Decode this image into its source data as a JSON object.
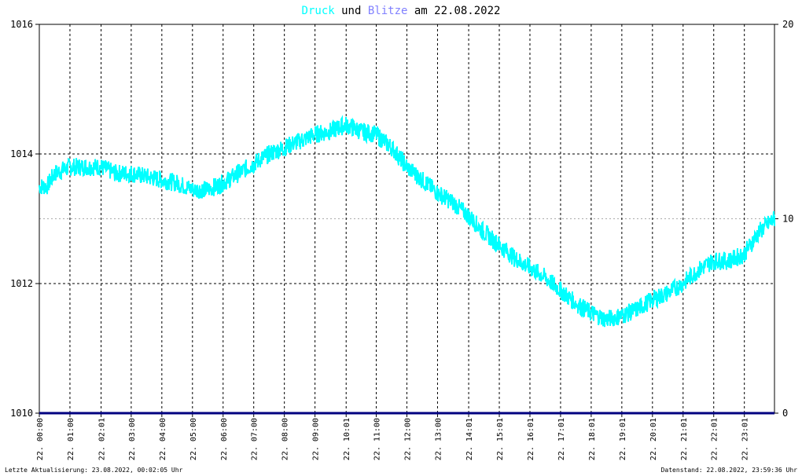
{
  "title": {
    "part1": "Druck",
    "part2": " und ",
    "part3": "Blitze",
    "part4": " am 22.08.2022",
    "color1": "#00ffff",
    "color3": "#8080ff",
    "color_text": "#000000"
  },
  "footer": {
    "left": "Letzte Aktualisierung: 23.08.2022, 00:02:05 Uhr",
    "right": "Datenstand: 22.08.2022, 23:59:36 Uhr"
  },
  "chart_data": {
    "type": "line",
    "grid": true,
    "left_axis": {
      "ylim": [
        1010,
        1016
      ],
      "ticks": [
        "1010",
        "1012",
        "1014",
        "1016"
      ]
    },
    "right_axis": {
      "ylim": [
        0,
        20
      ],
      "ticks": [
        "0",
        "10",
        "20"
      ]
    },
    "x_ticks": [
      "22. 00:00",
      "22. 01:00",
      "22. 02:01",
      "22. 03:00",
      "22. 04:00",
      "22. 05:00",
      "22. 06:00",
      "22. 07:00",
      "22. 08:00",
      "22. 09:00",
      "22. 10:01",
      "22. 11:00",
      "22. 12:00",
      "22. 13:00",
      "22. 14:01",
      "22. 15:01",
      "22. 16:01",
      "22. 17:01",
      "22. 18:01",
      "22. 19:01",
      "22. 20:01",
      "22. 21:01",
      "22. 22:01",
      "22. 23:01"
    ],
    "series": [
      {
        "name": "Druck",
        "axis": "left",
        "color": "#00ffff",
        "x_hours": [
          0,
          0.25,
          0.5,
          1,
          1.5,
          2,
          2.5,
          3,
          3.5,
          4,
          4.5,
          5,
          5.5,
          6,
          6.5,
          7,
          7.5,
          8,
          8.5,
          9,
          9.5,
          10,
          10.5,
          11,
          11.5,
          12,
          12.5,
          13,
          13.5,
          14,
          14.5,
          15,
          15.5,
          16,
          16.5,
          17,
          17.5,
          18,
          18.5,
          19,
          19.5,
          20,
          20.5,
          21,
          21.5,
          22,
          22.5,
          23,
          23.5,
          24
        ],
        "values": [
          1013.5,
          1013.5,
          1013.7,
          1013.8,
          1013.8,
          1013.8,
          1013.7,
          1013.7,
          1013.65,
          1013.6,
          1013.55,
          1013.45,
          1013.45,
          1013.55,
          1013.7,
          1013.85,
          1014.0,
          1014.1,
          1014.2,
          1014.3,
          1014.35,
          1014.45,
          1014.35,
          1014.3,
          1014.1,
          1013.8,
          1013.6,
          1013.4,
          1013.25,
          1013.05,
          1012.8,
          1012.6,
          1012.4,
          1012.25,
          1012.1,
          1011.9,
          1011.7,
          1011.55,
          1011.45,
          1011.5,
          1011.6,
          1011.75,
          1011.85,
          1012.0,
          1012.2,
          1012.35,
          1012.35,
          1012.45,
          1012.8,
          1013.0
        ]
      },
      {
        "name": "Blitze",
        "axis": "right",
        "color": "#000080",
        "x_hours": [
          0,
          24
        ],
        "values": [
          0,
          0
        ]
      }
    ]
  }
}
